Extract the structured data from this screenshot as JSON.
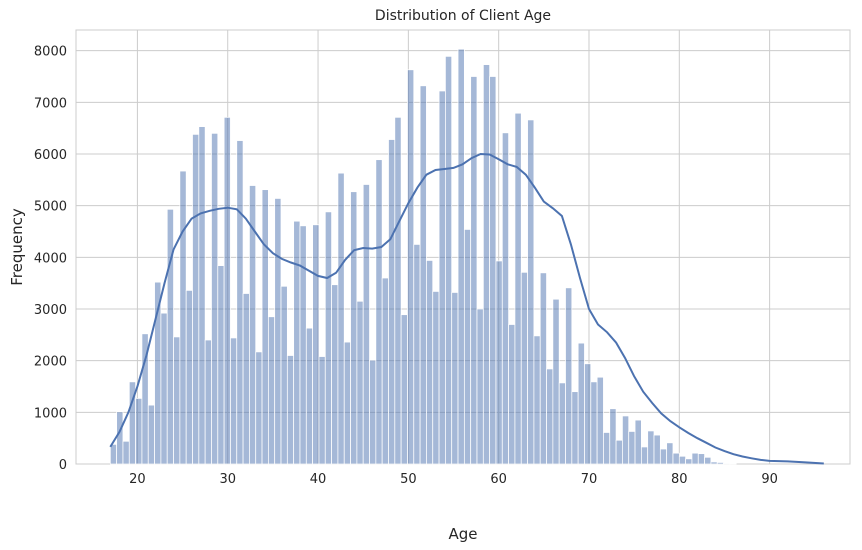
{
  "chart_data": {
    "type": "bar",
    "title": "Distribution of Client Age",
    "xlabel": "Age",
    "ylabel": "Frequency",
    "xlim": [
      13.2,
      98.9
    ],
    "ylim": [
      0,
      8400
    ],
    "xticks": [
      20,
      30,
      40,
      50,
      60,
      70,
      80,
      90
    ],
    "yticks": [
      0,
      1000,
      2000,
      3000,
      4000,
      5000,
      6000,
      7000,
      8000
    ],
    "grid": true,
    "bin_start": 17,
    "bin_width": 0.7,
    "values": [
      380,
      1010,
      440,
      1590,
      1270,
      2520,
      1140,
      3520,
      2920,
      4930,
      2460,
      5670,
      3360,
      6380,
      6530,
      2400,
      6400,
      3840,
      6710,
      2440,
      6260,
      3300,
      5390,
      2170,
      5310,
      2850,
      5140,
      3440,
      2100,
      4700,
      4610,
      2630,
      4630,
      2080,
      4880,
      3470,
      5630,
      2360,
      5270,
      3150,
      5410,
      2010,
      5890,
      3600,
      6280,
      6710,
      2890,
      7630,
      4250,
      7320,
      3940,
      3340,
      7220,
      7890,
      3320,
      8030,
      4540,
      7500,
      3000,
      7730,
      7500,
      3930,
      6410,
      2700,
      6790,
      3710,
      6660,
      2480,
      3700,
      1840,
      3190,
      1570,
      3410,
      1400,
      2340,
      1940,
      1590,
      1680,
      610,
      1070,
      460,
      930,
      630,
      850,
      330,
      640,
      560,
      290,
      410,
      210,
      150,
      100,
      210,
      200,
      130,
      40,
      30,
      15,
      10
    ],
    "kde": [
      [
        17,
        330
      ],
      [
        18,
        620
      ],
      [
        19,
        1000
      ],
      [
        20,
        1500
      ],
      [
        21,
        2100
      ],
      [
        22,
        2800
      ],
      [
        23,
        3500
      ],
      [
        24,
        4150
      ],
      [
        25,
        4500
      ],
      [
        26,
        4750
      ],
      [
        27,
        4850
      ],
      [
        28,
        4900
      ],
      [
        29,
        4940
      ],
      [
        30,
        4960
      ],
      [
        31,
        4930
      ],
      [
        32,
        4750
      ],
      [
        33,
        4500
      ],
      [
        34,
        4250
      ],
      [
        35,
        4080
      ],
      [
        36,
        3970
      ],
      [
        37,
        3900
      ],
      [
        38,
        3840
      ],
      [
        39,
        3740
      ],
      [
        40,
        3640
      ],
      [
        41,
        3600
      ],
      [
        42,
        3700
      ],
      [
        43,
        3950
      ],
      [
        44,
        4140
      ],
      [
        45,
        4180
      ],
      [
        46,
        4170
      ],
      [
        47,
        4200
      ],
      [
        48,
        4350
      ],
      [
        49,
        4700
      ],
      [
        50,
        5050
      ],
      [
        51,
        5350
      ],
      [
        52,
        5600
      ],
      [
        53,
        5690
      ],
      [
        54,
        5710
      ],
      [
        55,
        5730
      ],
      [
        56,
        5800
      ],
      [
        57,
        5920
      ],
      [
        58,
        6000
      ],
      [
        59,
        5990
      ],
      [
        60,
        5900
      ],
      [
        61,
        5800
      ],
      [
        62,
        5750
      ],
      [
        63,
        5600
      ],
      [
        64,
        5350
      ],
      [
        65,
        5080
      ],
      [
        66,
        4950
      ],
      [
        67,
        4800
      ],
      [
        68,
        4250
      ],
      [
        69,
        3600
      ],
      [
        70,
        3000
      ],
      [
        71,
        2700
      ],
      [
        72,
        2550
      ],
      [
        73,
        2350
      ],
      [
        74,
        2050
      ],
      [
        75,
        1700
      ],
      [
        76,
        1400
      ],
      [
        77,
        1180
      ],
      [
        78,
        980
      ],
      [
        79,
        830
      ],
      [
        80,
        710
      ],
      [
        81,
        600
      ],
      [
        82,
        500
      ],
      [
        83,
        410
      ],
      [
        84,
        320
      ],
      [
        85,
        250
      ],
      [
        86,
        190
      ],
      [
        87,
        145
      ],
      [
        88,
        110
      ],
      [
        89,
        80
      ],
      [
        90,
        60
      ],
      [
        92,
        50
      ],
      [
        94,
        30
      ],
      [
        96,
        10
      ]
    ],
    "bar_color": "#4C72B0",
    "bar_alpha": 0.5,
    "line_color": "#4C72B0",
    "grid_color": "#cccccc"
  }
}
